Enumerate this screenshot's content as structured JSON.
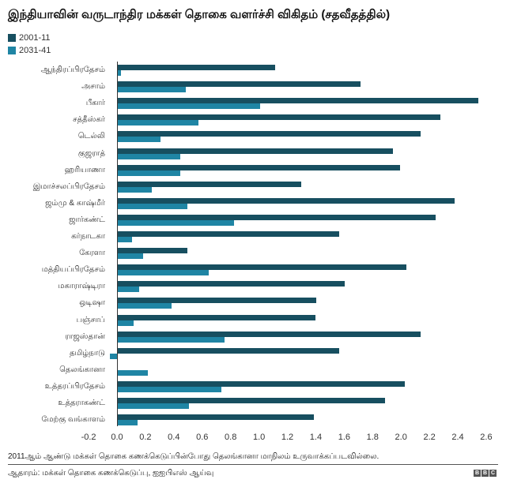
{
  "chart_data": {
    "type": "bar",
    "orientation": "horizontal",
    "title": "இந்தியாவின் வருடாந்திர மக்கள் தொகை வளர்ச்சி விகிதம் (சதவீதத்தில்)",
    "xlabel": "",
    "ylabel": "",
    "xlim": [
      -0.2,
      2.6
    ],
    "xticks": [
      "-0.2",
      "0.0",
      "0.2",
      "0.4",
      "0.6",
      "0.8",
      "1.0",
      "1.2",
      "1.4",
      "1.6",
      "1.8",
      "2.0",
      "2.2",
      "2.4",
      "2.6"
    ],
    "grid": false,
    "legend_position": "top-left",
    "categories": [
      "ஆந்திரப்பிரதேசம்",
      "அசாம்",
      "பீகார்",
      "சத்தீஸ்கர்",
      "டெல்லி",
      "குஜராத்",
      "ஹரியாணா",
      "இமாச்சலப்பிரதேசம்",
      "ஜம்மு & காஷ்மீர்",
      "ஜார்கண்ட்",
      "கர்நாடகா",
      "கேரளா",
      "மத்தியப்பிரதேசம்",
      "மகாராஷ்டிரா",
      "ஒடிஷா",
      "பஞ்சாப்",
      "ராஜஸ்தான்",
      "தமிழ்நாடு",
      "தெலங்கானா",
      "உத்தரப்பிரதேசம்",
      "உத்தராகண்ட்",
      "மேற்கு வங்காளம்"
    ],
    "series": [
      {
        "name": "2001-11",
        "color": "#174f60",
        "values": [
          1.11,
          1.71,
          2.54,
          2.27,
          2.13,
          1.94,
          1.99,
          1.29,
          2.37,
          2.24,
          1.56,
          0.49,
          2.03,
          1.6,
          1.4,
          1.39,
          2.13,
          1.56,
          null,
          2.02,
          1.88,
          1.38
        ]
      },
      {
        "name": "2031-41",
        "color": "#1f85a4",
        "values": [
          0.02,
          0.48,
          1.0,
          0.57,
          0.3,
          0.44,
          0.44,
          0.24,
          0.49,
          0.82,
          0.1,
          0.18,
          0.64,
          0.15,
          0.38,
          0.11,
          0.75,
          -0.05,
          0.21,
          0.73,
          0.5,
          0.14
        ]
      }
    ],
    "annotations": [
      "2011ஆம் ஆண்டு மக்கள் தொகை கணக்கெடுப்பின்போது தெலங்கானா மாநிலம் உருவாக்கப்படவில்லை."
    ]
  },
  "header": {
    "title": "இந்தியாவின் வருடாந்திர மக்கள் தொகை வளர்ச்சி விகிதம் (சதவீதத்தில்)"
  },
  "legend": [
    {
      "label": "2001-11",
      "color": "#174f60"
    },
    {
      "label": "2031-41",
      "color": "#1f85a4"
    }
  ],
  "footer": {
    "note": "2011ஆம் ஆண்டு மக்கள் தொகை கணக்கெடுப்பின்போது தெலங்கானா மாநிலம் உருவாக்கப்படவில்லை.",
    "source": "ஆதாரம்: மக்கள் தொகை கணக்கெடுப்பு, ஐஐபிஎஸ் ஆய்வு",
    "logo": [
      "B",
      "B",
      "C"
    ]
  }
}
